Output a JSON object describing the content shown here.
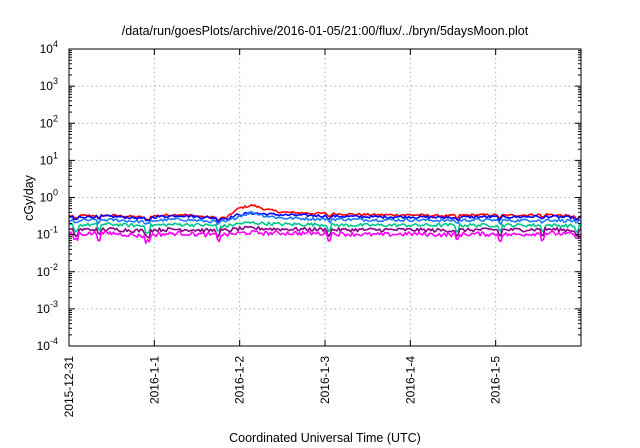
{
  "chart_data": {
    "type": "line",
    "title": "/data/run/goesPlots/archive/2016-01-05/21:00/flux/../bryn/5daysMoon.plot",
    "xlabel": "Coordinated Universal Time (UTC)",
    "ylabel": "cGy/day",
    "x_ticks": [
      "2015-12-31",
      "2016-1-1",
      "2016-1-2",
      "2016-1-3",
      "2016-1-4",
      "2016-1-5"
    ],
    "xlim_days": [
      0,
      6
    ],
    "ylim": [
      0.0001,
      10000
    ],
    "y_scale": "log",
    "y_ticks": [
      {
        "base": "10",
        "exp": "-4"
      },
      {
        "base": "10",
        "exp": "-3"
      },
      {
        "base": "10",
        "exp": "-2"
      },
      {
        "base": "10",
        "exp": "-1"
      },
      {
        "base": "10",
        "exp": "0"
      },
      {
        "base": "10",
        "exp": "1"
      },
      {
        "base": "10",
        "exp": "2"
      },
      {
        "base": "10",
        "exp": "3"
      },
      {
        "base": "10",
        "exp": "4"
      }
    ],
    "grid": true,
    "legend": "none",
    "series": [
      {
        "color": "#ff0000",
        "x": [
          0,
          0.5,
          0.9,
          1.0,
          1.3,
          1.6,
          1.85,
          2.0,
          2.15,
          2.3,
          2.5,
          2.8,
          3.2,
          3.6,
          4.0,
          4.4,
          4.8,
          5.2,
          5.6,
          6.0
        ],
        "y": [
          0.32,
          0.33,
          0.29,
          0.32,
          0.35,
          0.3,
          0.28,
          0.52,
          0.62,
          0.48,
          0.4,
          0.38,
          0.36,
          0.34,
          0.34,
          0.32,
          0.34,
          0.33,
          0.35,
          0.3
        ]
      },
      {
        "color": "#0000ff",
        "x": [
          0,
          0.5,
          0.9,
          1.0,
          1.3,
          1.6,
          1.85,
          2.0,
          2.15,
          2.3,
          2.5,
          2.8,
          3.2,
          3.6,
          4.0,
          4.4,
          4.8,
          5.2,
          5.6,
          6.0
        ],
        "y": [
          0.3,
          0.31,
          0.27,
          0.3,
          0.33,
          0.29,
          0.27,
          0.35,
          0.38,
          0.36,
          0.34,
          0.33,
          0.31,
          0.3,
          0.3,
          0.29,
          0.3,
          0.3,
          0.31,
          0.28
        ]
      },
      {
        "color": "#1e78ff",
        "x": [
          0,
          0.5,
          0.9,
          1.0,
          1.3,
          1.6,
          1.85,
          2.0,
          2.15,
          2.3,
          2.5,
          2.8,
          3.2,
          3.6,
          4.0,
          4.4,
          4.8,
          5.2,
          5.6,
          6.0
        ],
        "y": [
          0.24,
          0.25,
          0.22,
          0.24,
          0.26,
          0.23,
          0.22,
          0.32,
          0.4,
          0.32,
          0.28,
          0.27,
          0.26,
          0.25,
          0.25,
          0.24,
          0.25,
          0.24,
          0.25,
          0.23
        ]
      },
      {
        "color": "#00c88c",
        "x": [
          0,
          0.5,
          0.9,
          1.0,
          1.3,
          1.6,
          1.85,
          2.0,
          2.15,
          2.3,
          2.5,
          2.8,
          3.2,
          3.6,
          4.0,
          4.4,
          4.8,
          5.2,
          5.6,
          6.0
        ],
        "y": [
          0.18,
          0.19,
          0.17,
          0.18,
          0.19,
          0.18,
          0.17,
          0.2,
          0.21,
          0.2,
          0.19,
          0.19,
          0.18,
          0.18,
          0.18,
          0.18,
          0.18,
          0.18,
          0.18,
          0.17
        ]
      },
      {
        "color": "#8b008b",
        "x": [
          0,
          0.5,
          0.9,
          1.0,
          1.3,
          1.6,
          1.85,
          2.0,
          2.15,
          2.3,
          2.5,
          2.8,
          3.2,
          3.6,
          4.0,
          4.4,
          4.8,
          5.2,
          5.6,
          6.0
        ],
        "y": [
          0.135,
          0.14,
          0.125,
          0.135,
          0.14,
          0.13,
          0.13,
          0.145,
          0.15,
          0.145,
          0.14,
          0.14,
          0.135,
          0.135,
          0.135,
          0.13,
          0.135,
          0.135,
          0.14,
          0.13
        ]
      },
      {
        "color": "#ff00ff",
        "x": [
          0,
          0.5,
          0.9,
          1.0,
          1.3,
          1.6,
          1.85,
          2.0,
          2.15,
          2.3,
          2.5,
          2.8,
          3.2,
          3.6,
          4.0,
          4.4,
          4.8,
          5.2,
          5.6,
          6.0
        ],
        "y": [
          0.105,
          0.11,
          0.09,
          0.1,
          0.11,
          0.1,
          0.1,
          0.11,
          0.115,
          0.11,
          0.11,
          0.11,
          0.105,
          0.1,
          0.105,
          0.1,
          0.105,
          0.1,
          0.11,
          0.1
        ]
      }
    ]
  }
}
